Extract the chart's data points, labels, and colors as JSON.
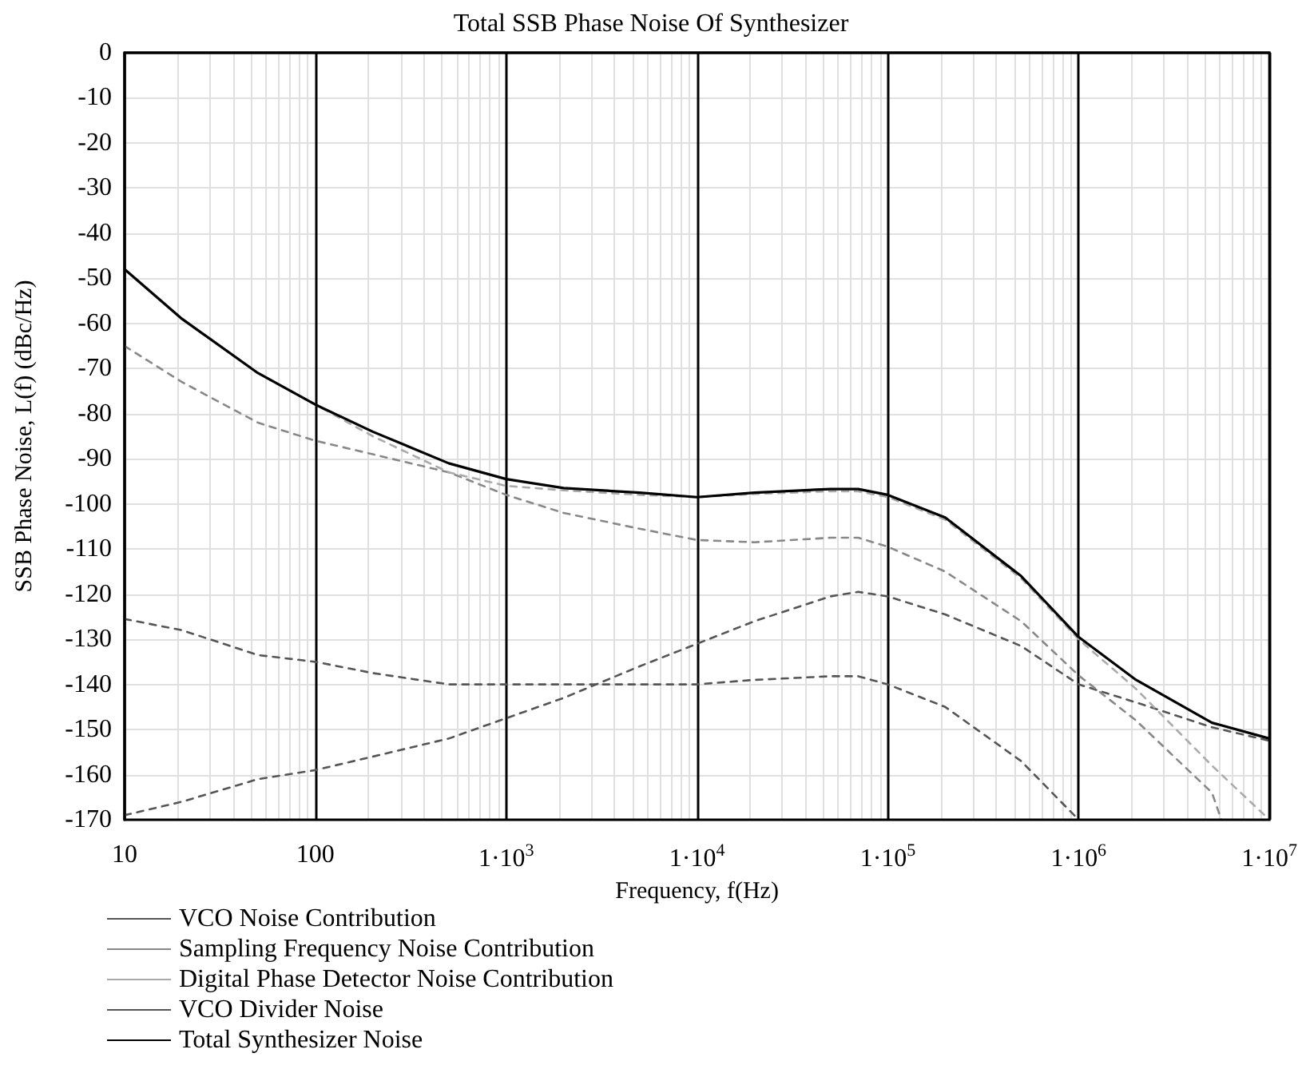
{
  "chart_data": {
    "type": "line",
    "title": "Total SSB Phase Noise Of Synthesizer",
    "xlabel": "Frequency, f(Hz)",
    "ylabel": "SSB Phase Noise, L(f) (dBc/Hz)",
    "log": "x",
    "grid": true,
    "legend": "bottom left",
    "marker": "none",
    "xlim": [
      10,
      10000000
    ],
    "ylim": [
      -170,
      0
    ],
    "xticks": [
      10,
      100,
      {
        "value": 1000,
        "label": "1·10$^{3}$"
      },
      {
        "value": 10000,
        "label": "1·10$^{4}$"
      },
      {
        "value": 100000,
        "label": "1·10$^{5}$"
      },
      {
        "value": 1000000,
        "label": "1·10$^{6}$"
      },
      {
        "value": 10000000,
        "label": "1·10$^{7}$"
      }
    ],
    "yticks": [
      0,
      -10,
      -20,
      -30,
      -40,
      -50,
      -60,
      -70,
      -80,
      -90,
      -100,
      -110,
      -120,
      -130,
      -140,
      -150,
      -160,
      -170
    ],
    "x": [
      10,
      20,
      50,
      100,
      200,
      500,
      1000,
      2000,
      5000,
      10000,
      20000,
      50000,
      70000,
      100000,
      200000,
      500000,
      1000000,
      2000000,
      5000000,
      10000000
    ],
    "series": [
      {
        "name": "VCO Noise Contribution",
        "color": "#555555",
        "line_style": "dashed",
        "values": [
          -169,
          -166,
          -161,
          -159,
          -156,
          -152,
          -147.5,
          -143,
          -136,
          -131,
          -126,
          -120.5,
          -119.5,
          -120.5,
          -124.5,
          -131.5,
          -140,
          -144,
          -149.5,
          -152.5
        ]
      },
      {
        "name": "Sampling Frequency Noise Contribution",
        "color": "#888888",
        "line_style": "dashed",
        "x": [
          10,
          20,
          50,
          100,
          200,
          500,
          1000,
          2000,
          5000,
          10000,
          20000,
          50000,
          70000,
          100000,
          200000,
          500000,
          1000000,
          2000000,
          5000000,
          5600000
        ],
        "values": [
          -65,
          -73,
          -82,
          -86,
          -89,
          -93,
          -98,
          -102,
          -105.5,
          -108,
          -108.5,
          -107.5,
          -107.5,
          -109.5,
          -115,
          -126,
          -138,
          -148,
          -164,
          -170
        ]
      },
      {
        "name": "Digital Phase Detector Noise Contribution",
        "color": "#aaaaaa",
        "line_style": "dashed",
        "values": [
          -48,
          -59,
          -71,
          -78,
          -85,
          -93,
          -96,
          -97,
          -98,
          -98.5,
          -97.8,
          -97.2,
          -97.2,
          -98.5,
          -103.5,
          -116.5,
          -130,
          -141,
          -158,
          -170
        ]
      },
      {
        "name": "VCO Divider Noise",
        "color": "#555555",
        "line_style": "dashed",
        "x": [
          10,
          20,
          50,
          100,
          200,
          500,
          1000,
          2000,
          5000,
          10000,
          20000,
          50000,
          70000,
          100000,
          200000,
          500000,
          1000000
        ],
        "values": [
          -125.5,
          -128,
          -133.5,
          -135,
          -137.5,
          -140,
          -140,
          -140,
          -140,
          -140,
          -139,
          -138.2,
          -138.2,
          -140,
          -145,
          -157,
          -170
        ]
      },
      {
        "name": "Total Synthesizer Noise",
        "color": "#000000",
        "line_style": "solid",
        "values": [
          -48,
          -59,
          -71,
          -78,
          -84,
          -91,
          -94.5,
          -96.5,
          -97.5,
          -98.5,
          -97.5,
          -96.7,
          -96.7,
          -98,
          -103,
          -116,
          -129.5,
          -139,
          -148.5,
          -152
        ]
      }
    ]
  }
}
